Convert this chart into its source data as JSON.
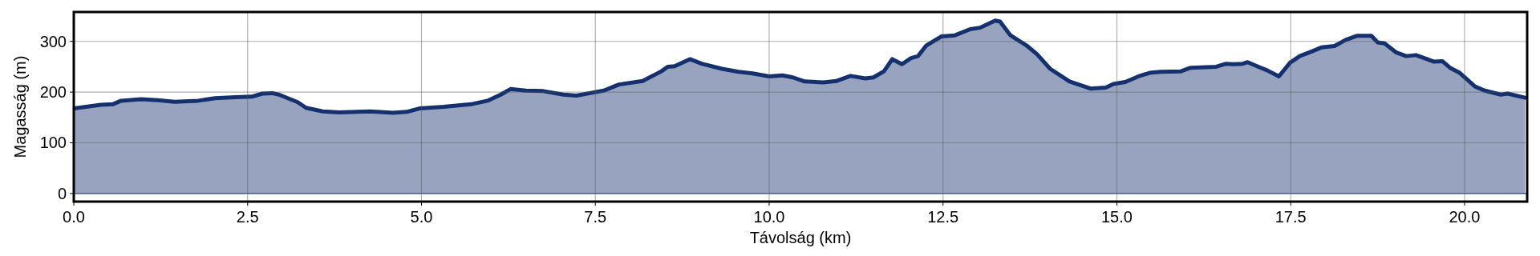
{
  "chart_data": {
    "type": "area",
    "xlabel": "Távolság (km)",
    "ylabel": "Magasság (m)",
    "xlim": [
      0,
      20.9
    ],
    "ylim": [
      -16,
      358
    ],
    "xticks": [
      {
        "value": 0,
        "label": "0.0"
      },
      2.5,
      {
        "value": 5,
        "label": "5.0"
      },
      7.5,
      {
        "value": 10,
        "label": "10.0"
      },
      12.5,
      {
        "value": 15,
        "label": "15.0"
      },
      17.5,
      {
        "value": 20,
        "label": "20.0"
      }
    ],
    "yticks": [
      0,
      100,
      200,
      300
    ],
    "grid": true,
    "ref_lines": [
      {
        "axis": "y",
        "value": 0,
        "color": "#4a5f8e"
      }
    ],
    "series": [
      {
        "color": "#14306e",
        "x": [
          0,
          0.39,
          0.56,
          0.68,
          0.97,
          1.21,
          1.45,
          1.79,
          2.03,
          2.32,
          2.56,
          2.71,
          2.85,
          2.95,
          3.22,
          3.34,
          3.58,
          3.82,
          4.26,
          4.59,
          4.79,
          4.98,
          5.32,
          5.71,
          5.95,
          6.14,
          6.28,
          6.5,
          6.75,
          7.04,
          7.23,
          7.5,
          7.62,
          7.84,
          8.18,
          8.45,
          8.54,
          8.64,
          8.86,
          9.03,
          9.32,
          9.56,
          9.76,
          10.0,
          10.19,
          10.34,
          10.51,
          10.78,
          10.97,
          11.17,
          11.38,
          11.5,
          11.65,
          11.77,
          11.91,
          12.04,
          12.14,
          12.26,
          12.48,
          12.67,
          12.89,
          13.03,
          13.25,
          13.32,
          13.47,
          13.71,
          13.85,
          14.04,
          14.32,
          14.62,
          14.84,
          14.95,
          15.12,
          15.31,
          15.47,
          15.63,
          15.92,
          16.06,
          16.43,
          16.57,
          16.67,
          16.81,
          16.88,
          17.07,
          17.16,
          17.33,
          17.49,
          17.63,
          17.8,
          17.94,
          18.13,
          18.29,
          18.45,
          18.66,
          18.75,
          18.85,
          19.02,
          19.16,
          19.3,
          19.42,
          19.56,
          19.68,
          19.79,
          19.93,
          20.15,
          20.29,
          20.52,
          20.62,
          20.87
        ],
        "values": [
          168,
          175,
          176,
          183,
          186,
          184,
          181,
          183,
          188,
          190,
          191,
          197,
          198,
          195,
          180,
          169,
          162,
          160,
          162,
          159,
          161,
          168,
          171,
          176,
          183,
          195,
          206,
          203,
          202,
          195,
          193,
          200,
          203,
          215,
          222,
          241,
          250,
          251,
          265,
          256,
          246,
          240,
          237,
          231,
          233,
          229,
          221,
          219,
          222,
          232,
          227,
          229,
          241,
          265,
          255,
          267,
          271,
          292,
          310,
          312,
          324,
          327,
          341,
          339,
          312,
          291,
          275,
          246,
          221,
          207,
          209,
          216,
          220,
          231,
          238,
          240,
          241,
          248,
          250,
          256,
          255,
          256,
          259,
          248,
          243,
          231,
          258,
          271,
          280,
          288,
          291,
          303,
          311,
          311,
          298,
          296,
          278,
          271,
          273,
          267,
          260,
          261,
          248,
          238,
          211,
          203,
          195,
          197,
          189
        ]
      }
    ]
  }
}
